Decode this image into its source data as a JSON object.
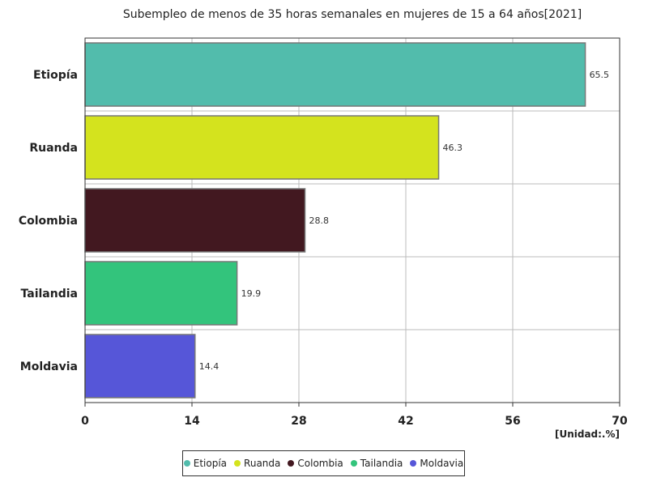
{
  "chart_data": {
    "type": "bar",
    "orientation": "horizontal",
    "title": "Subempleo de menos de 35 horas semanales en mujeres de 15 a 64 años[2021]",
    "unit_label": "[Unidad:.%]",
    "categories": [
      "Etiopía",
      "Ruanda",
      "Colombia",
      "Tailandia",
      "Moldavia"
    ],
    "values": [
      65.5,
      46.3,
      28.8,
      19.9,
      14.4
    ],
    "value_labels": [
      "65.5",
      "46.3",
      "28.8",
      "19.9",
      "14.4"
    ],
    "colors": [
      "#52bcac",
      "#d4e31e",
      "#421820",
      "#33c47c",
      "#5656d8"
    ],
    "xlim": [
      0,
      70
    ],
    "xticks": [
      0,
      14,
      28,
      42,
      56,
      70
    ],
    "grid": true,
    "legend_position": "bottom"
  }
}
